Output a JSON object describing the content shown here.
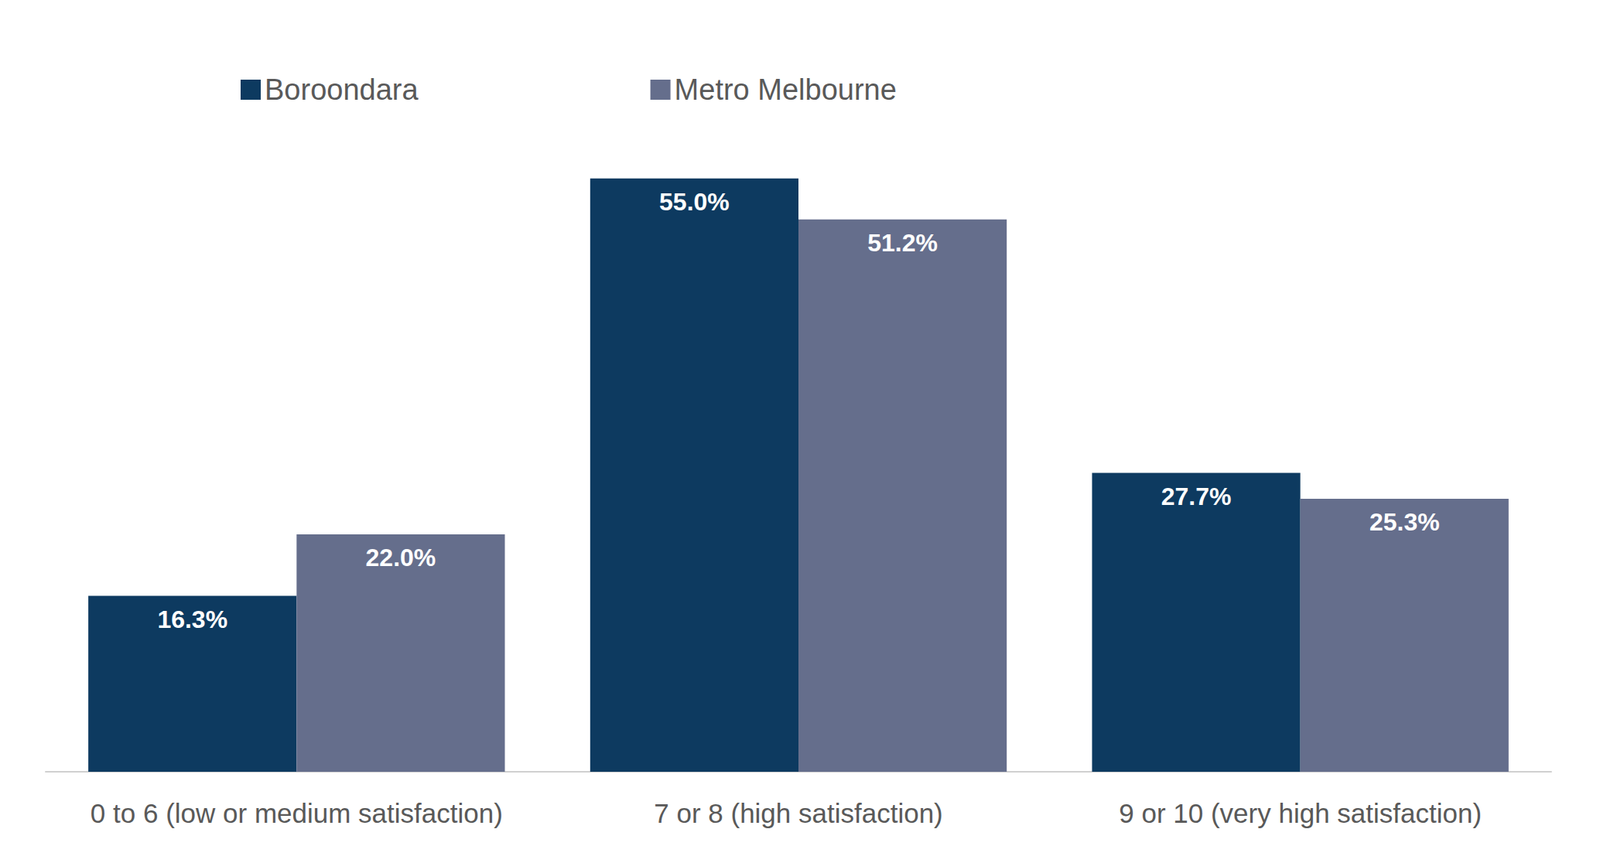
{
  "chart_data": {
    "type": "bar",
    "categories": [
      "0 to 6 (low or medium satisfaction)",
      "7 or 8 (high satisfaction)",
      "9 or 10 (very high satisfaction)"
    ],
    "series": [
      {
        "name": "Boroondara",
        "color": "#0d3a60",
        "values": [
          16.3,
          55.0,
          27.7
        ],
        "value_labels": [
          "16.3%",
          "55.0%",
          "27.7%"
        ]
      },
      {
        "name": "Metro Melbourne",
        "color": "#656e8c",
        "values": [
          22.0,
          51.2,
          25.3
        ],
        "value_labels": [
          "22.0%",
          "51.2%",
          "25.3%"
        ]
      }
    ],
    "ylim": [
      0,
      60
    ],
    "grid": false,
    "legend": "top",
    "data_labels": true,
    "tick_labels": "x"
  }
}
